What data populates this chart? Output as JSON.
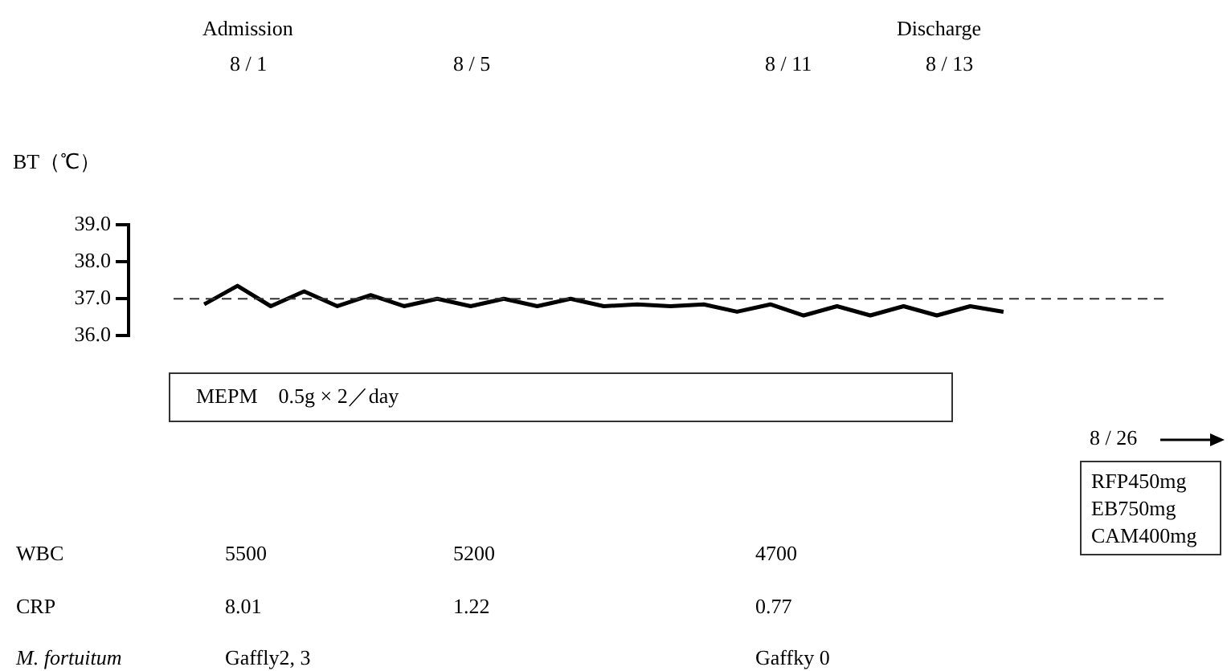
{
  "chart_data": {
    "type": "line",
    "ylabel": "BT（℃）",
    "categories": [
      null,
      null,
      null,
      null,
      null,
      null,
      null,
      null,
      null,
      null,
      null,
      null,
      null,
      null,
      null,
      null,
      null,
      null,
      null,
      null,
      null,
      null,
      null,
      null,
      null
    ],
    "series": [
      {
        "color": "#000000",
        "values": [
          36.85,
          37.35,
          36.8,
          37.2,
          36.8,
          37.1,
          36.8,
          37.0,
          36.8,
          37.0,
          36.8,
          37.0,
          36.8,
          36.85,
          36.8,
          36.85,
          36.65,
          36.85,
          36.55,
          36.8,
          36.55,
          36.8,
          36.55,
          36.8,
          36.65
        ]
      }
    ],
    "ylim": [
      36,
      39
    ],
    "yticks": [
      {
        "value": 36,
        "label": "36.0"
      },
      {
        "value": 37,
        "label": "37.0"
      },
      {
        "value": 38,
        "label": "38.0"
      },
      {
        "value": 39,
        "label": "39.0"
      }
    ],
    "ref_lines": [
      {
        "axis": "y",
        "value": 37,
        "color": "#333333",
        "line_style": "dashed"
      }
    ],
    "grid": false,
    "legend": false,
    "marker": "none",
    "line_style": "solid",
    "tick_labels": "y",
    "annotations": [
      "Admission",
      "Discharge",
      "8 / 1",
      "8 / 5",
      "8 / 11",
      "8 / 13",
      "MEPM　0.5g × 2／day",
      "8 / 26",
      "RFP450mg",
      "EB750mg",
      "CAM400mg",
      "WBC",
      "5500",
      "5200",
      "4700",
      "CRP",
      "8.01",
      "1.22",
      "0.77",
      "M. fortuitum",
      "Gaffly2, 3",
      "Gaffky 0"
    ]
  }
}
